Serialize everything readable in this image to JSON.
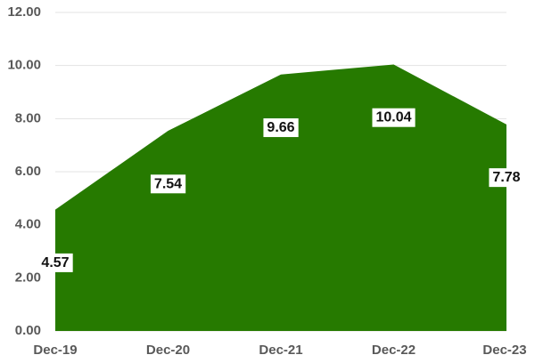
{
  "chart_data": {
    "type": "area",
    "categories": [
      "Dec-19",
      "Dec-20",
      "Dec-21",
      "Dec-22",
      "Dec-23"
    ],
    "values": [
      4.57,
      7.54,
      9.66,
      10.04,
      7.78
    ],
    "color": "#267a00",
    "ylim": [
      0,
      12
    ],
    "yticks": [
      {
        "value": 0,
        "label": "0.00"
      },
      {
        "value": 2,
        "label": "2.00"
      },
      {
        "value": 4,
        "label": "4.00"
      },
      {
        "value": 6,
        "label": "6.00"
      },
      {
        "value": 8,
        "label": "8.00"
      },
      {
        "value": 10,
        "label": "10.00"
      },
      {
        "value": 12,
        "label": "12.00"
      }
    ],
    "grid": true
  }
}
